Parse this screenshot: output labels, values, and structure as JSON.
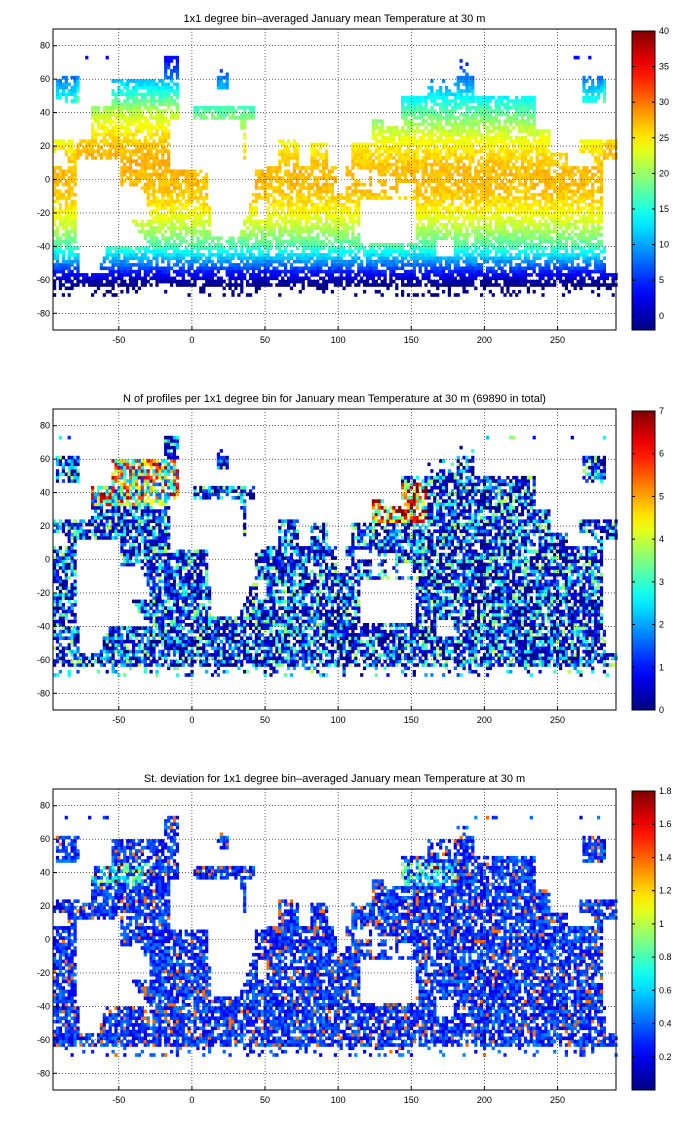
{
  "chart_data": [
    {
      "type": "heatmap",
      "title": "1x1 degree bin–averaged January mean Temperature at 30 m",
      "xlim": [
        -95,
        290
      ],
      "ylim": [
        -90,
        90
      ],
      "xticks": [
        -50,
        0,
        50,
        100,
        150,
        200,
        250
      ],
      "yticks": [
        80,
        60,
        40,
        20,
        0,
        -20,
        -40,
        -60,
        -80
      ],
      "grid": true,
      "colorbar": {
        "range": [
          -2,
          40
        ],
        "ticks": [
          40,
          35,
          30,
          25,
          20,
          15,
          10,
          5,
          0
        ]
      },
      "field": "temperature"
    },
    {
      "type": "heatmap",
      "title": "N of profiles per 1x1 degree bin for January mean Temperature at 30 m (69890 in total)",
      "xlim": [
        -95,
        290
      ],
      "ylim": [
        -90,
        90
      ],
      "xticks": [
        -50,
        0,
        50,
        100,
        150,
        200,
        250
      ],
      "yticks": [
        80,
        60,
        40,
        20,
        0,
        -20,
        -40,
        -60,
        -80
      ],
      "grid": true,
      "colorbar": {
        "range": [
          0,
          7
        ],
        "ticks": [
          7,
          6,
          5,
          4,
          3,
          2,
          1,
          0
        ]
      },
      "field": "count"
    },
    {
      "type": "heatmap",
      "title": "St. deviation for 1x1 degree bin–averaged January mean Temperature at 30 m",
      "xlim": [
        -95,
        290
      ],
      "ylim": [
        -90,
        90
      ],
      "xticks": [
        -50,
        0,
        50,
        100,
        150,
        200,
        250
      ],
      "yticks": [
        80,
        60,
        40,
        20,
        0,
        -20,
        -40,
        -60,
        -80
      ],
      "grid": true,
      "colorbar": {
        "range": [
          0,
          1.8
        ],
        "ticks": [
          1.8,
          1.6,
          1.4,
          1.2,
          1,
          0.8,
          0.6,
          0.4,
          0.2
        ]
      },
      "field": "stdev"
    }
  ],
  "colormap": "jet"
}
